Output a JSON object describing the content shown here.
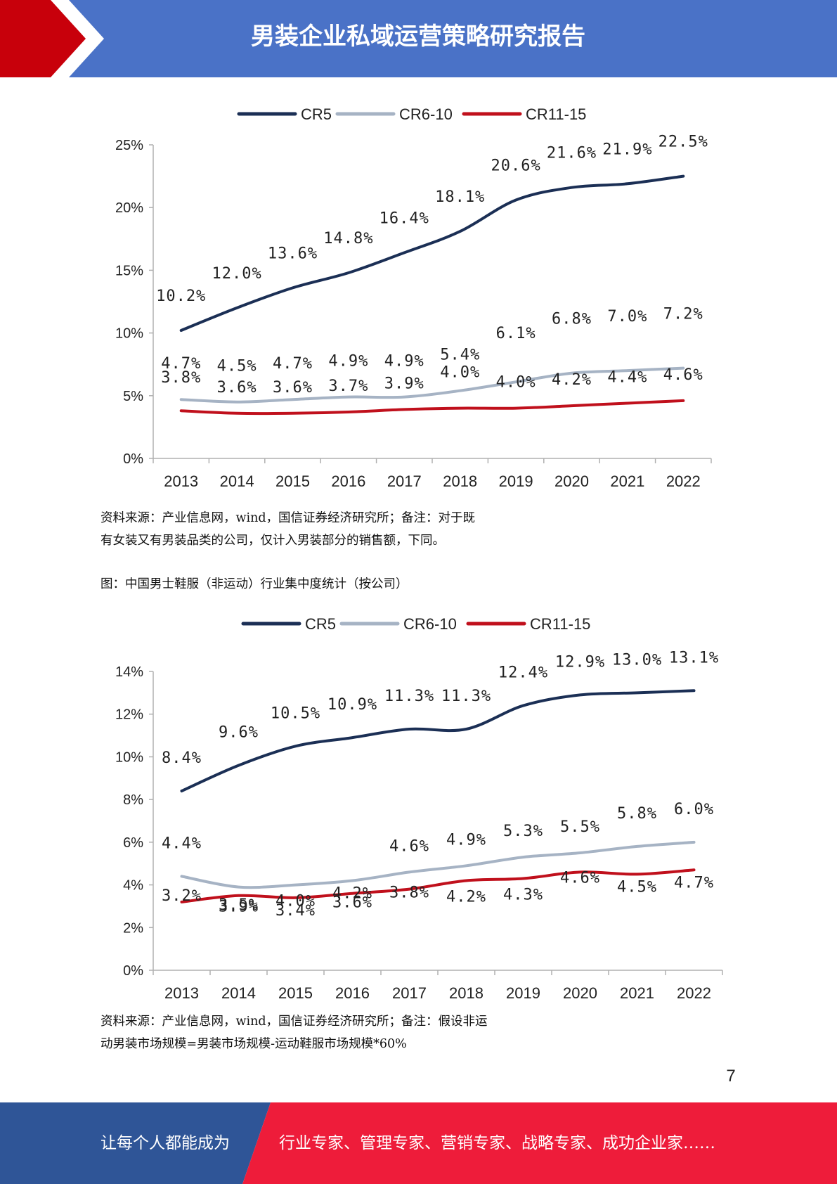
{
  "header": {
    "title": "男装企业私域运营策略研究报告"
  },
  "colors": {
    "header_bg": "#4a72c7",
    "header_accent": "#c8000b",
    "footer_left": "#2f5597",
    "footer_right": "#ee1c3a"
  },
  "chart_data": [
    {
      "type": "line",
      "categories": [
        "2013",
        "2014",
        "2015",
        "2016",
        "2017",
        "2018",
        "2019",
        "2020",
        "2021",
        "2022"
      ],
      "ylim": [
        0,
        25
      ],
      "yticks": [
        0,
        5,
        10,
        15,
        20,
        25
      ],
      "ytick_labels": [
        "0%",
        "5%",
        "10%",
        "15%",
        "20%",
        "25%"
      ],
      "legend_position": "top",
      "grid": false,
      "series": [
        {
          "name": "CR5",
          "color": "#1b2f55",
          "values": [
            10.2,
            12.0,
            13.6,
            14.8,
            16.4,
            18.1,
            20.6,
            21.6,
            21.9,
            22.5
          ],
          "labels": [
            "10.2%",
            "12.0%",
            "13.6%",
            "14.8%",
            "16.4%",
            "18.1%",
            "20.6%",
            "21.6%",
            "21.9%",
            "22.5%"
          ]
        },
        {
          "name": "CR6-10",
          "color": "#a6b3c4",
          "values": [
            4.7,
            4.5,
            4.7,
            4.9,
            4.9,
            5.4,
            6.1,
            6.8,
            7.0,
            7.2
          ],
          "labels": [
            "4.7%",
            "4.5%",
            "4.7%",
            "4.9%",
            "4.9%",
            "5.4%",
            "6.1%",
            "6.8%",
            "7.0%",
            "7.2%"
          ]
        },
        {
          "name": "CR11-15",
          "color": "#c0101c",
          "values": [
            3.8,
            3.6,
            3.6,
            3.7,
            3.9,
            4.0,
            4.0,
            4.2,
            4.4,
            4.6
          ],
          "labels": [
            "3.8%",
            "3.6%",
            "3.6%",
            "3.7%",
            "3.9%",
            "4.0%",
            "4.0%",
            "4.2%",
            "4.4%",
            "4.6%"
          ]
        }
      ]
    },
    {
      "type": "line",
      "categories": [
        "2013",
        "2014",
        "2015",
        "2016",
        "2017",
        "2018",
        "2019",
        "2020",
        "2021",
        "2022"
      ],
      "ylim": [
        0,
        14
      ],
      "yticks": [
        0,
        2,
        4,
        6,
        8,
        10,
        12,
        14
      ],
      "ytick_labels": [
        "0%",
        "2%",
        "4%",
        "6%",
        "8%",
        "10%",
        "12%",
        "14%"
      ],
      "legend_position": "top",
      "grid": false,
      "series": [
        {
          "name": "CR5",
          "color": "#1b2f55",
          "values": [
            8.4,
            9.6,
            10.5,
            10.9,
            11.3,
            11.3,
            12.4,
            12.9,
            13.0,
            13.1
          ],
          "labels": [
            "8.4%",
            "9.6%",
            "10.5%",
            "10.9%",
            "11.3%",
            "11.3%",
            "12.4%",
            "12.9%",
            "13.0%",
            "13.1%"
          ]
        },
        {
          "name": "CR6-10",
          "color": "#a6b3c4",
          "values": [
            4.4,
            3.9,
            4.0,
            4.2,
            4.6,
            4.9,
            5.3,
            5.5,
            5.8,
            6.0
          ],
          "labels": [
            "4.4%",
            "3.9%",
            "4.0%",
            "4.2%",
            "4.6%",
            "4.9%",
            "5.3%",
            "5.5%",
            "5.8%",
            "6.0%"
          ]
        },
        {
          "name": "CR11-15",
          "color": "#c0101c",
          "values": [
            3.2,
            3.5,
            3.4,
            3.6,
            3.8,
            4.2,
            4.3,
            4.6,
            4.5,
            4.7
          ],
          "labels": [
            "3.2%",
            "3.5%",
            "3.4%",
            "3.6%",
            "3.8%",
            "4.2%",
            "4.3%",
            "4.6%",
            "4.5%",
            "4.7%"
          ]
        }
      ]
    }
  ],
  "notes": {
    "chart1_source_line1": "资料来源：产业信息网，wind，国信证券经济研究所；备注：对于既",
    "chart1_source_line2": "有女装又有男装品类的公司，仅计入男装部分的销售额，下同。",
    "chart2_caption": "图：中国男士鞋服（非运动）行业集中度统计（按公司）",
    "chart2_source_line1": "资料来源：产业信息网，wind，国信证券经济研究所；备注：假设非运",
    "chart2_source_line2": "动男装市场规模=男装市场规模-运动鞋服市场规模*60%"
  },
  "page_number": "7",
  "footer": {
    "left_text": "让每个人都能成为",
    "right_text": "行业专家、管理专家、营销专家、战略专家、成功企业家……"
  }
}
